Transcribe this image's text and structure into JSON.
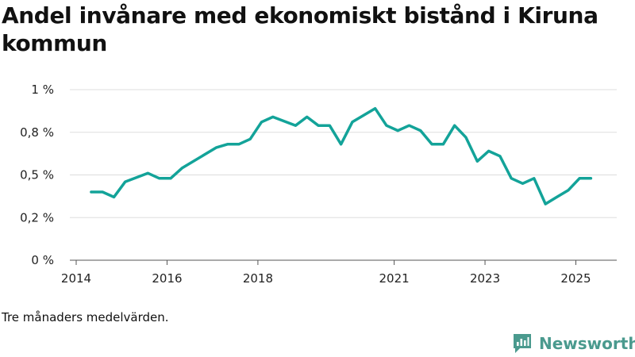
{
  "title": "Andel invånare med ekonomiskt bistånd i Kiruna kommun",
  "note": "Tre månaders medelvärden.",
  "brand": "Newsworthy",
  "colors": {
    "line": "#13a399",
    "grid": "#dddddd",
    "brand": "#4a9a8e"
  },
  "chart_data": {
    "type": "line",
    "title": "Andel invånare med ekonomiskt bistånd i Kiruna kommun",
    "ylim": [
      0,
      1
    ],
    "y_ticks": [
      {
        "value": 0,
        "label": "0 %"
      },
      {
        "value": 0.25,
        "label": "0,2 %"
      },
      {
        "value": 0.5,
        "label": "0,5 %"
      },
      {
        "value": 0.75,
        "label": "0,8 %"
      },
      {
        "value": 1,
        "label": "1 %"
      }
    ],
    "x_ticks": [
      {
        "value": 2014.0,
        "label": "2014"
      },
      {
        "value": 2016.0,
        "label": "2016"
      },
      {
        "value": 2018.0,
        "label": "2018"
      },
      {
        "value": 2021.0,
        "label": "2021"
      },
      {
        "value": 2023.0,
        "label": "2023"
      },
      {
        "value": 2025.0,
        "label": "2025"
      }
    ],
    "xlim": [
      2014.0,
      2025.9
    ],
    "grid": true,
    "series": [
      {
        "x": [
          2014.33,
          2014.58,
          2014.83,
          2015.08,
          2015.58,
          2015.83,
          2016.08,
          2016.33,
          2017.08,
          2017.33,
          2017.58,
          2017.83,
          2018.08,
          2018.33,
          2018.83,
          2019.08,
          2019.33,
          2019.58,
          2019.83,
          2020.08,
          2020.58,
          2020.83,
          2021.08,
          2021.33,
          2021.58,
          2021.83,
          2022.08,
          2022.33,
          2022.58,
          2022.83,
          2023.08,
          2023.33,
          2023.58,
          2023.83,
          2024.08,
          2024.33,
          2024.58,
          2024.83,
          2025.08,
          2025.33
        ],
        "y": [
          0.4,
          0.4,
          0.37,
          0.46,
          0.51,
          0.48,
          0.48,
          0.54,
          0.66,
          0.68,
          0.68,
          0.71,
          0.81,
          0.84,
          0.79,
          0.84,
          0.79,
          0.79,
          0.68,
          0.81,
          0.89,
          0.79,
          0.76,
          0.79,
          0.76,
          0.68,
          0.68,
          0.79,
          0.72,
          0.58,
          0.64,
          0.61,
          0.48,
          0.45,
          0.48,
          0.33,
          0.37,
          0.41,
          0.48,
          0.48
        ]
      }
    ]
  }
}
